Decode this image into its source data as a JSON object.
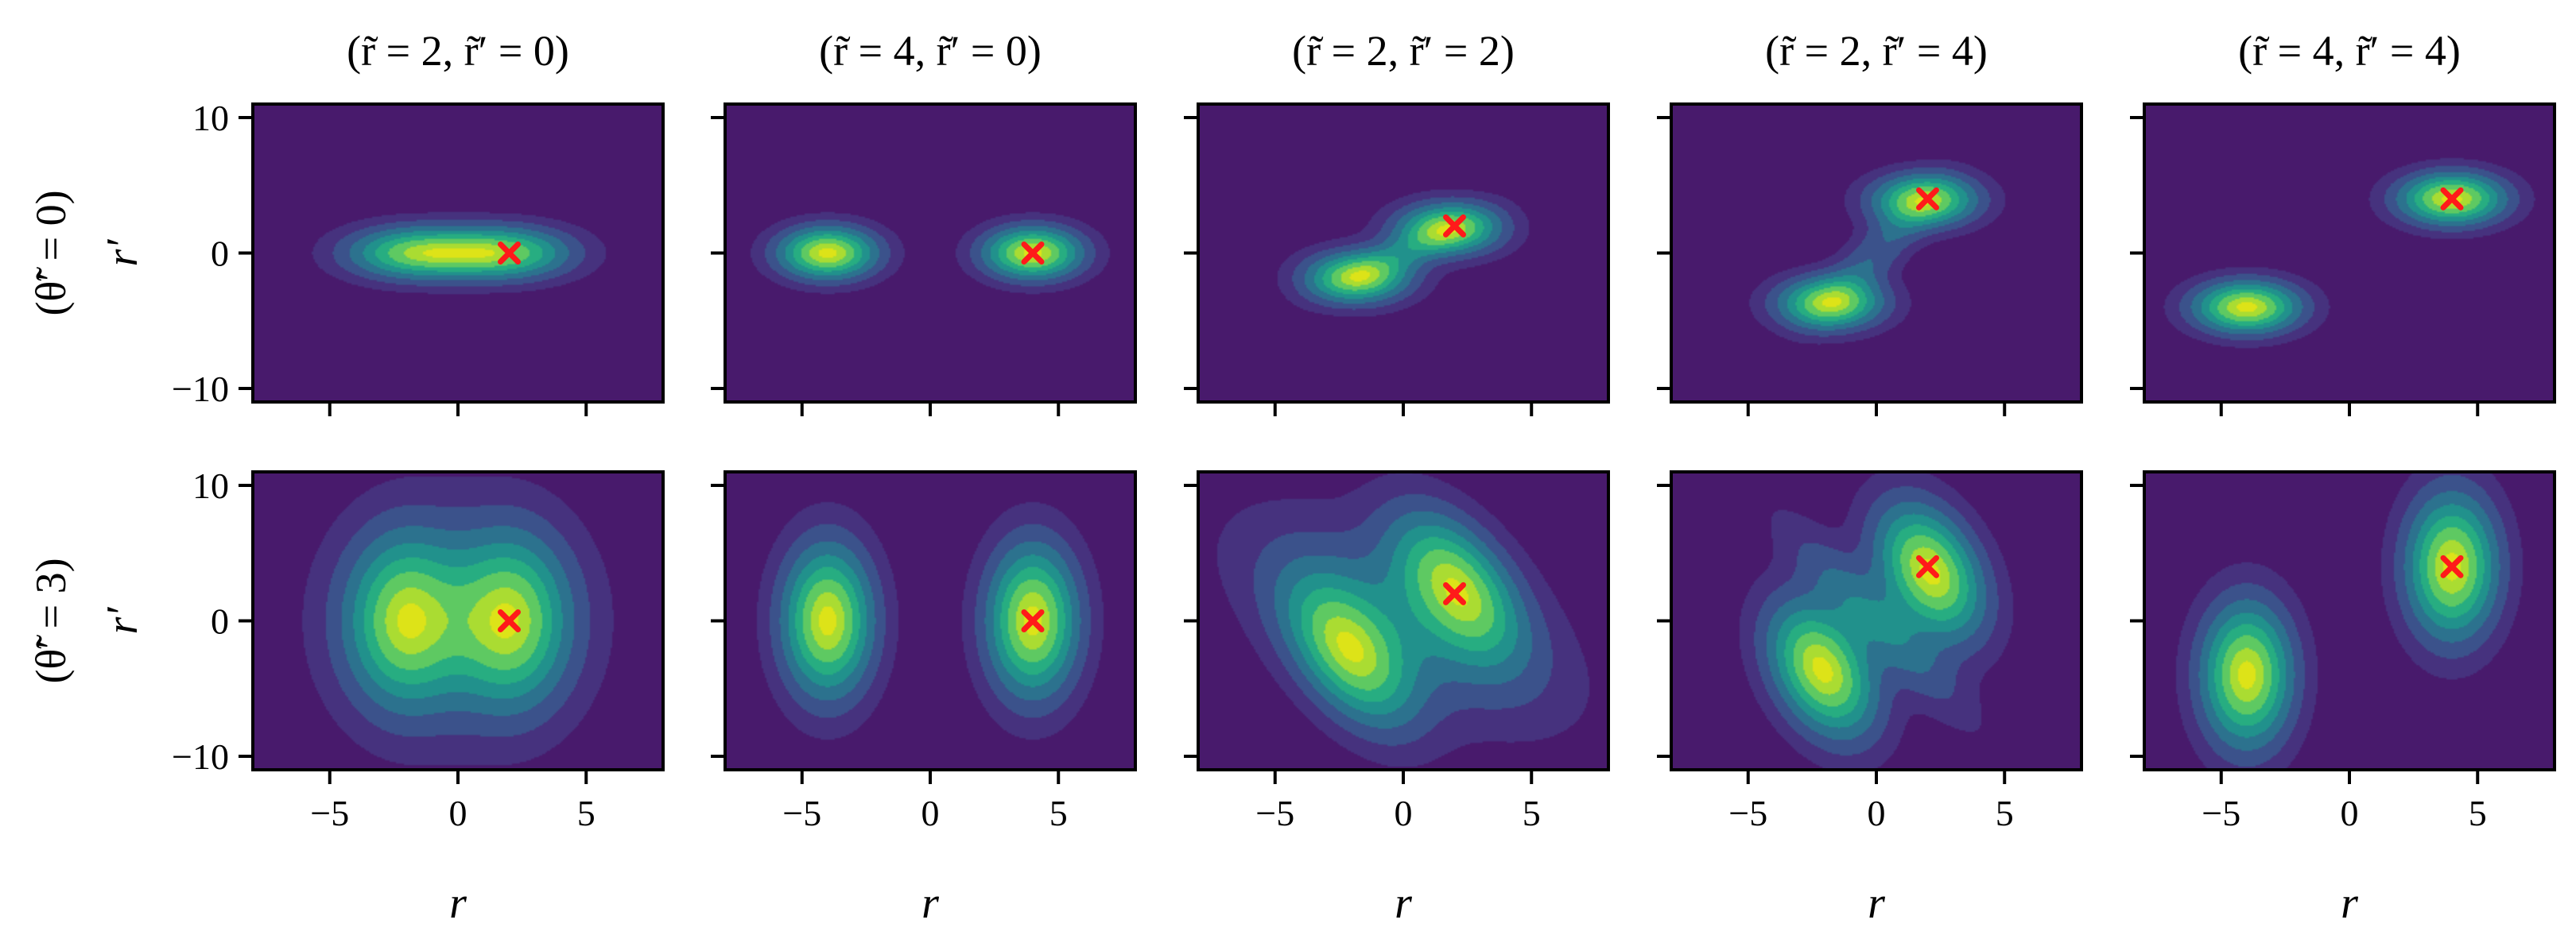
{
  "chart_data": {
    "type": "heatmap",
    "layout": {
      "rows": 2,
      "cols": 5
    },
    "column_titles": [
      "(r̃ = 2, r̃′ = 0)",
      "(r̃ = 4, r̃′ = 0)",
      "(r̃ = 2, r̃′ = 2)",
      "(r̃ = 2, r̃′ = 4)",
      "(r̃ = 4, r̃′ = 4)"
    ],
    "row_labels": [
      "(θ̃′ = 0)",
      "(θ̃′ = 3)"
    ],
    "xlabel": "r",
    "ylabel": "r′",
    "xlim": [
      -8,
      8
    ],
    "ylim": [
      -11,
      11
    ],
    "xticks": [
      -5,
      0,
      5
    ],
    "xtick_labels": [
      "−5",
      "0",
      "5"
    ],
    "yticks": [
      -10,
      0,
      10
    ],
    "ytick_labels": [
      "−10",
      "0",
      "10"
    ],
    "colormap": [
      "#481a6c",
      "#46327e",
      "#3b528b",
      "#2c728e",
      "#21918c",
      "#27ad81",
      "#5ec962",
      "#aadc32",
      "#dde318"
    ],
    "marker_color": "#ff1a1a",
    "panels": [
      [
        {
          "marker": [
            2,
            0
          ],
          "lobes": [
            {
              "center": [
                -1.7,
                0
              ],
              "sx": 1.8,
              "sy": 1.3,
              "rot": 0,
              "amp": 1.0
            },
            {
              "center": [
                1.8,
                0
              ],
              "sx": 1.8,
              "sy": 1.3,
              "rot": 0,
              "amp": 1.0
            }
          ]
        },
        {
          "marker": [
            4,
            0
          ],
          "lobes": [
            {
              "center": [
                -4,
                0
              ],
              "sx": 1.3,
              "sy": 1.3,
              "rot": 0,
              "amp": 1.0
            },
            {
              "center": [
                4,
                0
              ],
              "sx": 1.3,
              "sy": 1.3,
              "rot": 0,
              "amp": 1.0
            }
          ]
        },
        {
          "marker": [
            2,
            2
          ],
          "lobes": [
            {
              "center": [
                -1.8,
                -1.8
              ],
              "sx": 1.4,
              "sy": 1.3,
              "rot": 0,
              "amp": 1.0
            },
            {
              "center": [
                1.8,
                1.8
              ],
              "sx": 1.4,
              "sy": 1.3,
              "rot": 0,
              "amp": 1.0
            },
            {
              "center": [
                0,
                0
              ],
              "sx": 2.4,
              "sy": 0.8,
              "rot": 45,
              "amp": 0.32
            }
          ]
        },
        {
          "marker": [
            2,
            4
          ],
          "lobes": [
            {
              "center": [
                -1.8,
                -3.7
              ],
              "sx": 1.4,
              "sy": 1.3,
              "rot": 0,
              "amp": 1.0
            },
            {
              "center": [
                1.9,
                3.9
              ],
              "sx": 1.4,
              "sy": 1.3,
              "rot": 0,
              "amp": 1.0
            },
            {
              "center": [
                0,
                0
              ],
              "sx": 0.8,
              "sy": 3.2,
              "rot": -25,
              "amp": 0.32
            }
          ]
        },
        {
          "marker": [
            4,
            4
          ],
          "lobes": [
            {
              "center": [
                -4,
                -4
              ],
              "sx": 1.4,
              "sy": 1.3,
              "rot": 0,
              "amp": 1.0
            },
            {
              "center": [
                4,
                4
              ],
              "sx": 1.4,
              "sy": 1.3,
              "rot": 0,
              "amp": 1.0
            }
          ]
        }
      ],
      [
        {
          "marker": [
            2,
            0
          ],
          "lobes": [
            {
              "center": [
                -2.1,
                0
              ],
              "sx": 1.5,
              "sy": 4.2,
              "rot": 0,
              "amp": 1.0
            },
            {
              "center": [
                2.1,
                0
              ],
              "sx": 1.5,
              "sy": 4.2,
              "rot": 0,
              "amp": 1.0
            },
            {
              "center": [
                0,
                0
              ],
              "sx": 3.2,
              "sy": 5.6,
              "rot": 0,
              "amp": 0.38
            }
          ]
        },
        {
          "marker": [
            4,
            0
          ],
          "lobes": [
            {
              "center": [
                -4,
                0
              ],
              "sx": 1.2,
              "sy": 3.8,
              "rot": 0,
              "amp": 1.0
            },
            {
              "center": [
                4,
                0
              ],
              "sx": 1.2,
              "sy": 3.8,
              "rot": 0,
              "amp": 1.0
            }
          ]
        },
        {
          "marker": [
            2,
            2
          ],
          "lobes": [
            {
              "center": [
                -2.1,
                -2.4
              ],
              "sx": 1.4,
              "sy": 3.8,
              "rot": 15,
              "amp": 1.0
            },
            {
              "center": [
                2.1,
                2.6
              ],
              "sx": 1.4,
              "sy": 3.8,
              "rot": 15,
              "amp": 1.0
            },
            {
              "center": [
                0,
                0
              ],
              "sx": 2.9,
              "sy": 5.8,
              "rot": 35,
              "amp": 0.38
            }
          ]
        },
        {
          "marker": [
            2,
            4
          ],
          "lobes": [
            {
              "center": [
                -2.1,
                -3.6
              ],
              "sx": 1.3,
              "sy": 3.4,
              "rot": 10,
              "amp": 1.0
            },
            {
              "center": [
                2.1,
                3.6
              ],
              "sx": 1.3,
              "sy": 3.4,
              "rot": 10,
              "amp": 1.0
            },
            {
              "center": [
                0,
                0
              ],
              "sx": 0.9,
              "sy": 5.0,
              "rot": 25,
              "amp": 0.34
            }
          ]
        },
        {
          "marker": [
            4,
            4
          ],
          "lobes": [
            {
              "center": [
                -4,
                -4
              ],
              "sx": 1.2,
              "sy": 3.6,
              "rot": 0,
              "amp": 1.0
            },
            {
              "center": [
                4,
                4
              ],
              "sx": 1.2,
              "sy": 3.6,
              "rot": 0,
              "amp": 1.0
            }
          ]
        }
      ]
    ]
  }
}
